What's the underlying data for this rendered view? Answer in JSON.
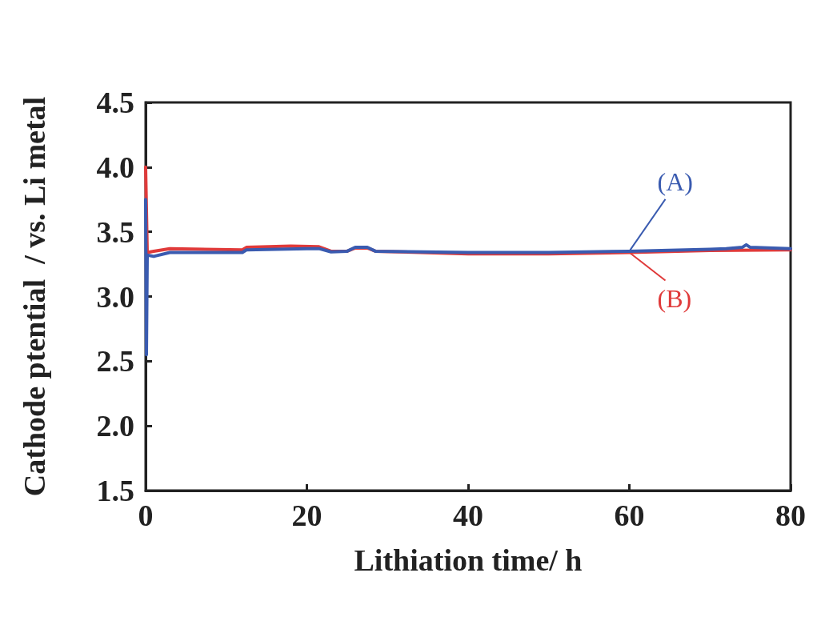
{
  "chart_data": {
    "type": "line",
    "xlabel": "Lithiation time/ h",
    "ylabel": "Cathode ptential  / vs. Li metal",
    "xlim": [
      0,
      80
    ],
    "xticks": [
      0,
      20,
      40,
      60,
      80
    ],
    "ylim": [
      1.5,
      4.5
    ],
    "yticks": [
      {
        "value": 1.5,
        "label": "1.5"
      },
      {
        "value": 2,
        "label": "2.0"
      },
      {
        "value": 2.5,
        "label": "2.5"
      },
      {
        "value": 3,
        "label": "3.0"
      },
      {
        "value": 3.5,
        "label": "3.5"
      },
      {
        "value": 4,
        "label": "4.0"
      },
      {
        "value": 4.5,
        "label": "4.5"
      }
    ],
    "grid": false,
    "legend": "right",
    "marker": "none",
    "line_style": "solid",
    "series": [
      {
        "name": "(A)",
        "color": "#3a5bb0",
        "x": [
          0,
          0.1,
          0.2,
          1,
          3,
          12,
          12.5,
          20,
          21.5,
          23,
          25,
          26,
          27.5,
          28.5,
          40,
          50,
          60,
          70,
          72,
          74,
          74.5,
          75,
          80
        ],
        "values": [
          3.75,
          2.55,
          3.32,
          3.31,
          3.34,
          3.34,
          3.36,
          3.37,
          3.37,
          3.345,
          3.35,
          3.38,
          3.38,
          3.35,
          3.34,
          3.34,
          3.35,
          3.365,
          3.37,
          3.38,
          3.4,
          3.38,
          3.37
        ]
      },
      {
        "name": "(B)",
        "color": "#e03a3a",
        "x": [
          0,
          0.2,
          1,
          3,
          12,
          12.5,
          18,
          21.5,
          23,
          25,
          26,
          27.5,
          28.5,
          40,
          50,
          60,
          70,
          80
        ],
        "values": [
          4.0,
          3.34,
          3.35,
          3.37,
          3.36,
          3.38,
          3.39,
          3.385,
          3.35,
          3.35,
          3.375,
          3.375,
          3.35,
          3.33,
          3.33,
          3.34,
          3.355,
          3.36
        ]
      }
    ]
  }
}
